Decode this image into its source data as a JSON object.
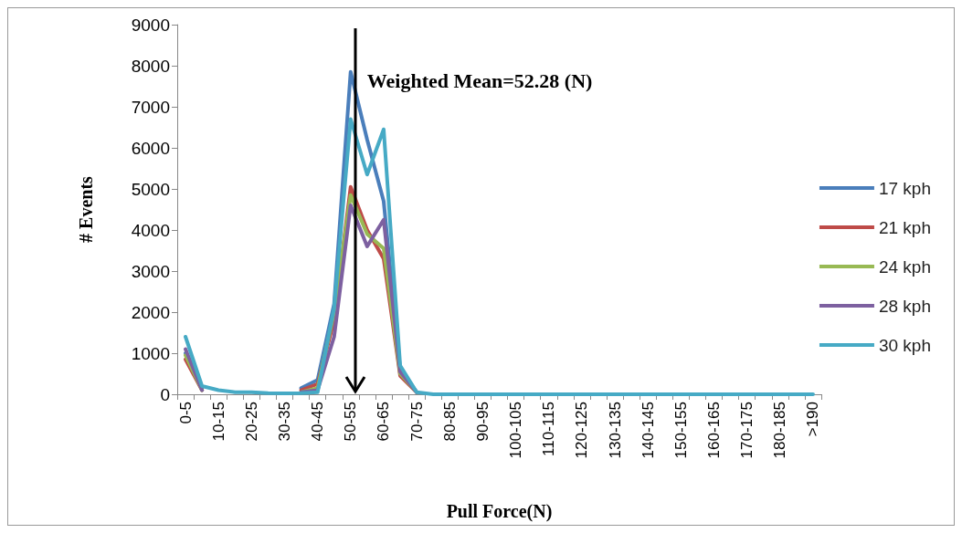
{
  "chart_data": {
    "type": "line",
    "xlabel": "Pull Force(N)",
    "ylabel": "# Events",
    "categories": [
      "0-5",
      null,
      "10-15",
      null,
      "20-25",
      null,
      "30-35",
      null,
      "40-45",
      null,
      "50-55",
      null,
      "60-65",
      null,
      "70-75",
      null,
      "80-85",
      null,
      "90-95",
      null,
      "100-105",
      null,
      "110-115",
      null,
      "120-125",
      null,
      "130-135",
      null,
      "140-145",
      null,
      "150-155",
      null,
      "160-165",
      null,
      "170-175",
      null,
      "180-185",
      null,
      ">190"
    ],
    "series": [
      {
        "name": "17 kph",
        "color": "#4a7ebb",
        "values": [
          1000,
          150,
          null,
          null,
          null,
          null,
          null,
          150,
          350,
          2200,
          7850,
          6200,
          4700,
          600,
          50,
          null,
          null,
          null,
          null,
          null,
          null,
          null,
          null,
          null,
          null,
          null,
          null,
          null,
          null,
          null,
          null,
          null,
          null,
          null,
          null,
          null,
          null,
          null,
          null
        ]
      },
      {
        "name": "21 kph",
        "color": "#be4b48",
        "values": [
          850,
          100,
          null,
          null,
          null,
          null,
          null,
          100,
          250,
          1800,
          5050,
          4000,
          3300,
          450,
          50,
          null,
          null,
          null,
          null,
          null,
          null,
          null,
          null,
          null,
          null,
          null,
          null,
          null,
          null,
          null,
          null,
          null,
          null,
          null,
          null,
          null,
          null,
          null,
          null
        ]
      },
      {
        "name": "24 kph",
        "color": "#98b954",
        "values": [
          950,
          100,
          null,
          null,
          null,
          null,
          null,
          50,
          150,
          2000,
          4850,
          3900,
          3550,
          500,
          50,
          null,
          null,
          null,
          null,
          null,
          null,
          null,
          null,
          null,
          null,
          null,
          null,
          null,
          null,
          null,
          null,
          null,
          null,
          null,
          null,
          null,
          null,
          null,
          null
        ]
      },
      {
        "name": "28 kph",
        "color": "#7d60a0",
        "values": [
          1100,
          100,
          null,
          null,
          null,
          null,
          null,
          50,
          100,
          1400,
          4600,
          3600,
          4250,
          550,
          50,
          null,
          null,
          null,
          null,
          null,
          null,
          null,
          null,
          null,
          null,
          null,
          null,
          null,
          null,
          null,
          null,
          null,
          null,
          null,
          null,
          null,
          null,
          null,
          null
        ]
      },
      {
        "name": "30 kph",
        "color": "#46aac5",
        "values": [
          1400,
          200,
          100,
          50,
          50,
          30,
          20,
          30,
          50,
          2100,
          6700,
          5350,
          6450,
          700,
          50,
          0,
          0,
          0,
          0,
          0,
          0,
          0,
          0,
          0,
          0,
          0,
          0,
          0,
          0,
          0,
          0,
          0,
          0,
          0,
          0,
          0,
          0,
          0,
          0
        ]
      }
    ],
    "ylim": [
      0,
      9000
    ],
    "yticks": [
      0,
      1000,
      2000,
      3000,
      4000,
      5000,
      6000,
      7000,
      8000,
      9000
    ],
    "annotations": [
      {
        "text": "Weighted Mean=52.28 (N)",
        "x": "50-55"
      }
    ],
    "grid": false,
    "legend": "right",
    "marker": "none",
    "line_style": "solid"
  }
}
